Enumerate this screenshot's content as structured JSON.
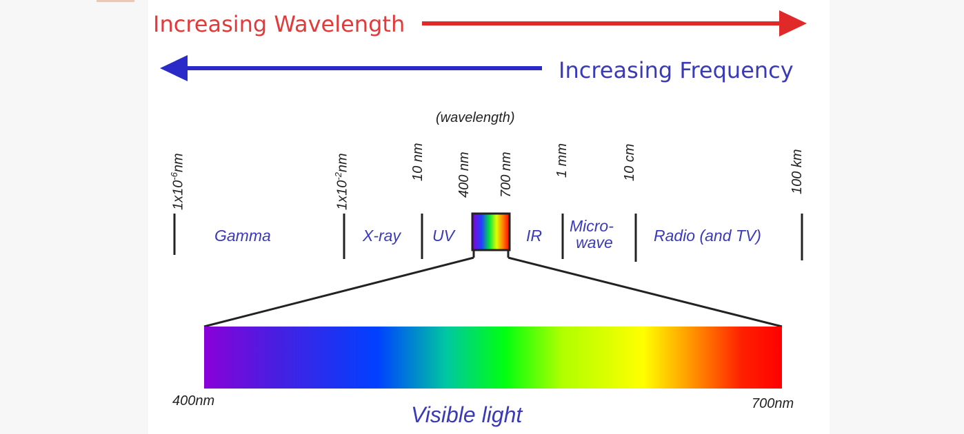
{
  "header": {
    "wavelength_label": "Increasing Wavelength",
    "frequency_label": "Increasing Frequency",
    "wavelength_arrow_color": "#e02a2a",
    "frequency_arrow_color": "#2a2ac8"
  },
  "scale": {
    "caption": "(wavelength)",
    "ticks": [
      {
        "base": "1x10",
        "exp": "-6",
        "unit": "nm"
      },
      {
        "base": "1x10",
        "exp": "-2",
        "unit": "nm"
      },
      {
        "text": "10 nm"
      },
      {
        "text": "400 nm"
      },
      {
        "text": "700 nm"
      },
      {
        "text": "1 mm"
      },
      {
        "text": "10 cm"
      },
      {
        "text": "100 km"
      }
    ],
    "bands": [
      "Gamma",
      "X-ray",
      "UV",
      "IR",
      "Micro-",
      "wave",
      "Radio (and TV)"
    ]
  },
  "visible": {
    "label": "Visible light",
    "start": "400nm",
    "end": "700nm",
    "gradient_colors": [
      "#8a00d8",
      "#4a1ee0",
      "#0040ff",
      "#00c8a0",
      "#00ff10",
      "#b0ff00",
      "#ffff00",
      "#ff9a00",
      "#ff2000",
      "#ff0000"
    ]
  },
  "colors": {
    "band_text": "#3a3ab8",
    "line": "#222222"
  }
}
